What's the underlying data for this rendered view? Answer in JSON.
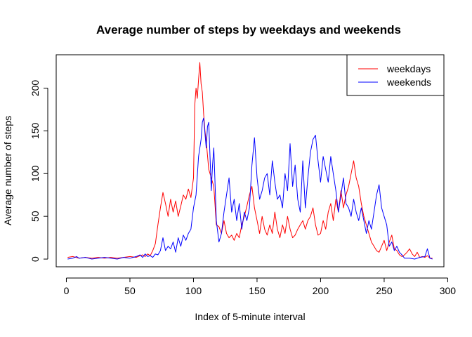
{
  "chart_data": {
    "type": "line",
    "title": "Average number of steps by weekdays and weekends",
    "xlabel": "Index of 5-minute interval",
    "ylabel": "Average number of steps",
    "xlim": [
      -8,
      297
    ],
    "ylim": [
      -9,
      239
    ],
    "xticks": [
      0,
      50,
      100,
      150,
      200,
      250,
      300
    ],
    "yticks": [
      0,
      50,
      100,
      150,
      200
    ],
    "legend_position": "top-right",
    "grid": false,
    "series": [
      {
        "name": "weekdays",
        "color": "#ff0000",
        "points": [
          [
            1,
            2
          ],
          [
            5,
            3
          ],
          [
            10,
            1
          ],
          [
            15,
            2
          ],
          [
            20,
            1
          ],
          [
            25,
            2
          ],
          [
            30,
            1
          ],
          [
            35,
            2
          ],
          [
            40,
            1
          ],
          [
            45,
            2
          ],
          [
            50,
            3
          ],
          [
            55,
            2
          ],
          [
            58,
            4
          ],
          [
            60,
            5
          ],
          [
            62,
            3
          ],
          [
            64,
            6
          ],
          [
            66,
            4
          ],
          [
            68,
            10
          ],
          [
            70,
            18
          ],
          [
            72,
            40
          ],
          [
            74,
            60
          ],
          [
            76,
            78
          ],
          [
            78,
            65
          ],
          [
            80,
            50
          ],
          [
            82,
            70
          ],
          [
            84,
            55
          ],
          [
            86,
            68
          ],
          [
            88,
            50
          ],
          [
            90,
            62
          ],
          [
            92,
            75
          ],
          [
            94,
            70
          ],
          [
            96,
            82
          ],
          [
            98,
            72
          ],
          [
            100,
            95
          ],
          [
            101,
            180
          ],
          [
            102,
            200
          ],
          [
            103,
            188
          ],
          [
            104,
            210
          ],
          [
            105,
            230
          ],
          [
            106,
            205
          ],
          [
            107,
            195
          ],
          [
            108,
            170
          ],
          [
            109,
            150
          ],
          [
            110,
            138
          ],
          [
            112,
            105
          ],
          [
            114,
            95
          ],
          [
            116,
            85
          ],
          [
            118,
            40
          ],
          [
            120,
            38
          ],
          [
            122,
            30
          ],
          [
            124,
            45
          ],
          [
            126,
            30
          ],
          [
            128,
            25
          ],
          [
            130,
            28
          ],
          [
            132,
            22
          ],
          [
            134,
            30
          ],
          [
            136,
            25
          ],
          [
            138,
            40
          ],
          [
            140,
            50
          ],
          [
            142,
            62
          ],
          [
            144,
            75
          ],
          [
            146,
            85
          ],
          [
            148,
            60
          ],
          [
            150,
            45
          ],
          [
            152,
            30
          ],
          [
            154,
            50
          ],
          [
            156,
            35
          ],
          [
            158,
            28
          ],
          [
            160,
            40
          ],
          [
            162,
            30
          ],
          [
            164,
            55
          ],
          [
            166,
            35
          ],
          [
            168,
            25
          ],
          [
            170,
            40
          ],
          [
            172,
            30
          ],
          [
            174,
            50
          ],
          [
            176,
            35
          ],
          [
            178,
            25
          ],
          [
            180,
            28
          ],
          [
            182,
            35
          ],
          [
            184,
            40
          ],
          [
            186,
            45
          ],
          [
            188,
            35
          ],
          [
            190,
            45
          ],
          [
            192,
            50
          ],
          [
            194,
            60
          ],
          [
            196,
            40
          ],
          [
            198,
            28
          ],
          [
            200,
            30
          ],
          [
            202,
            45
          ],
          [
            204,
            35
          ],
          [
            206,
            55
          ],
          [
            208,
            65
          ],
          [
            210,
            45
          ],
          [
            212,
            70
          ],
          [
            214,
            55
          ],
          [
            216,
            80
          ],
          [
            218,
            60
          ],
          [
            220,
            75
          ],
          [
            222,
            85
          ],
          [
            224,
            100
          ],
          [
            226,
            115
          ],
          [
            228,
            95
          ],
          [
            230,
            85
          ],
          [
            232,
            65
          ],
          [
            234,
            50
          ],
          [
            236,
            40
          ],
          [
            238,
            30
          ],
          [
            240,
            20
          ],
          [
            242,
            15
          ],
          [
            244,
            10
          ],
          [
            246,
            8
          ],
          [
            248,
            15
          ],
          [
            250,
            22
          ],
          [
            252,
            10
          ],
          [
            254,
            20
          ],
          [
            256,
            28
          ],
          [
            258,
            12
          ],
          [
            260,
            10
          ],
          [
            262,
            5
          ],
          [
            264,
            3
          ],
          [
            266,
            5
          ],
          [
            268,
            8
          ],
          [
            270,
            12
          ],
          [
            272,
            6
          ],
          [
            274,
            3
          ],
          [
            276,
            8
          ],
          [
            278,
            2
          ],
          [
            280,
            3
          ],
          [
            282,
            2
          ],
          [
            284,
            4
          ],
          [
            286,
            1
          ],
          [
            288,
            1
          ]
        ]
      },
      {
        "name": "weekends",
        "color": "#0000ff",
        "points": [
          [
            1,
            0
          ],
          [
            5,
            1
          ],
          [
            8,
            3
          ],
          [
            10,
            1
          ],
          [
            15,
            2
          ],
          [
            20,
            0
          ],
          [
            25,
            1
          ],
          [
            30,
            2
          ],
          [
            35,
            1
          ],
          [
            40,
            0
          ],
          [
            45,
            2
          ],
          [
            50,
            1
          ],
          [
            55,
            3
          ],
          [
            58,
            5
          ],
          [
            60,
            2
          ],
          [
            62,
            6
          ],
          [
            64,
            3
          ],
          [
            66,
            4
          ],
          [
            68,
            2
          ],
          [
            70,
            6
          ],
          [
            72,
            5
          ],
          [
            74,
            10
          ],
          [
            76,
            25
          ],
          [
            78,
            10
          ],
          [
            80,
            15
          ],
          [
            82,
            12
          ],
          [
            84,
            20
          ],
          [
            86,
            8
          ],
          [
            88,
            25
          ],
          [
            90,
            15
          ],
          [
            92,
            28
          ],
          [
            94,
            22
          ],
          [
            96,
            30
          ],
          [
            98,
            35
          ],
          [
            100,
            60
          ],
          [
            102,
            75
          ],
          [
            104,
            120
          ],
          [
            106,
            140
          ],
          [
            107,
            160
          ],
          [
            108,
            165
          ],
          [
            110,
            130
          ],
          [
            111,
            155
          ],
          [
            112,
            160
          ],
          [
            114,
            80
          ],
          [
            115,
            110
          ],
          [
            116,
            130
          ],
          [
            118,
            45
          ],
          [
            120,
            20
          ],
          [
            122,
            30
          ],
          [
            124,
            55
          ],
          [
            126,
            75
          ],
          [
            128,
            95
          ],
          [
            130,
            55
          ],
          [
            132,
            70
          ],
          [
            134,
            45
          ],
          [
            136,
            65
          ],
          [
            138,
            35
          ],
          [
            140,
            55
          ],
          [
            142,
            45
          ],
          [
            144,
            60
          ],
          [
            146,
            110
          ],
          [
            148,
            142
          ],
          [
            150,
            95
          ],
          [
            152,
            70
          ],
          [
            154,
            80
          ],
          [
            156,
            95
          ],
          [
            158,
            100
          ],
          [
            160,
            75
          ],
          [
            162,
            115
          ],
          [
            164,
            90
          ],
          [
            166,
            70
          ],
          [
            168,
            75
          ],
          [
            170,
            60
          ],
          [
            172,
            100
          ],
          [
            174,
            80
          ],
          [
            176,
            135
          ],
          [
            178,
            85
          ],
          [
            180,
            110
          ],
          [
            182,
            70
          ],
          [
            184,
            55
          ],
          [
            186,
            115
          ],
          [
            188,
            60
          ],
          [
            190,
            95
          ],
          [
            192,
            125
          ],
          [
            194,
            140
          ],
          [
            196,
            145
          ],
          [
            198,
            115
          ],
          [
            200,
            90
          ],
          [
            202,
            120
          ],
          [
            204,
            105
          ],
          [
            206,
            90
          ],
          [
            208,
            120
          ],
          [
            210,
            100
          ],
          [
            212,
            80
          ],
          [
            214,
            55
          ],
          [
            216,
            75
          ],
          [
            218,
            95
          ],
          [
            220,
            65
          ],
          [
            222,
            60
          ],
          [
            224,
            50
          ],
          [
            226,
            70
          ],
          [
            228,
            55
          ],
          [
            230,
            45
          ],
          [
            232,
            60
          ],
          [
            234,
            45
          ],
          [
            236,
            30
          ],
          [
            238,
            45
          ],
          [
            240,
            35
          ],
          [
            242,
            55
          ],
          [
            244,
            75
          ],
          [
            246,
            87
          ],
          [
            248,
            60
          ],
          [
            250,
            50
          ],
          [
            252,
            40
          ],
          [
            254,
            15
          ],
          [
            256,
            20
          ],
          [
            258,
            10
          ],
          [
            260,
            15
          ],
          [
            262,
            8
          ],
          [
            264,
            5
          ],
          [
            266,
            1
          ],
          [
            270,
            1
          ],
          [
            274,
            0
          ],
          [
            278,
            2
          ],
          [
            282,
            3
          ],
          [
            284,
            12
          ],
          [
            286,
            1
          ],
          [
            288,
            0
          ]
        ]
      }
    ]
  }
}
